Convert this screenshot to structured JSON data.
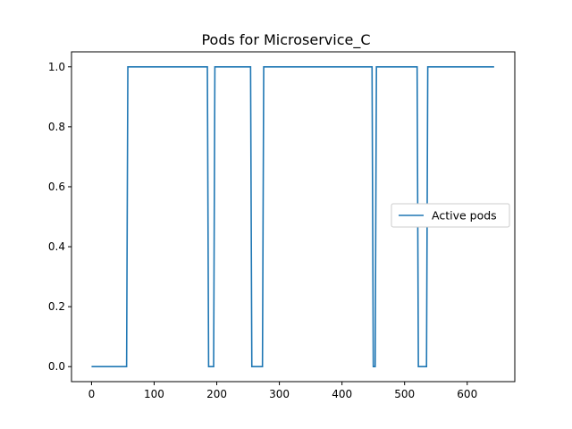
{
  "chart_data": {
    "type": "line",
    "title": "Pods for Microservice_C",
    "xlabel": "",
    "ylabel": "",
    "xlim": [
      -32,
      676
    ],
    "ylim": [
      -0.05,
      1.05
    ],
    "x_ticks": [
      0,
      100,
      200,
      300,
      400,
      500,
      600
    ],
    "y_ticks": [
      0.0,
      0.2,
      0.4,
      0.6,
      0.8,
      1.0
    ],
    "y_tick_labels": [
      "0.0",
      "0.2",
      "0.4",
      "0.6",
      "0.8",
      "1.0"
    ],
    "grid": false,
    "legend_position": "center-right",
    "series": [
      {
        "name": "Active pods",
        "color": "#1f77b4",
        "x": [
          0,
          56,
          58,
          185,
          187,
          195,
          197,
          254,
          256,
          273,
          275,
          448,
          450,
          453,
          455,
          520,
          522,
          535,
          537,
          643
        ],
        "y": [
          0,
          0,
          1,
          1,
          0,
          0,
          1,
          1,
          0,
          0,
          1,
          1,
          0,
          0,
          1,
          1,
          0,
          0,
          1,
          1
        ]
      }
    ]
  }
}
